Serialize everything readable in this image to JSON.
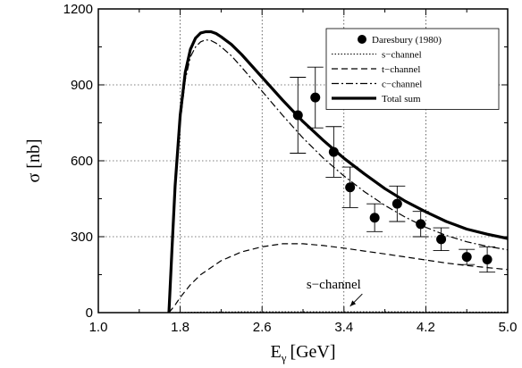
{
  "chart_data": {
    "type": "line",
    "xlabel": "E",
    "xlabel_sub": "γ",
    "xlabel_unit": "[GeV]",
    "ylabel": "σ [nb]",
    "xlim": [
      1.0,
      5.0
    ],
    "ylim": [
      0,
      1200
    ],
    "x_ticks": [
      "1.0",
      "1.8",
      "2.6",
      "3.4",
      "4.2",
      "5.0"
    ],
    "x_tick_values": [
      1.0,
      1.8,
      2.6,
      3.4,
      4.2,
      5.0
    ],
    "y_ticks": [
      "0",
      "300",
      "600",
      "900",
      "1200"
    ],
    "y_tick_values": [
      0,
      300,
      600,
      900,
      1200
    ],
    "grid": true,
    "legend_position": "top-right",
    "legend": [
      "Daresbury (1980)",
      "s−channel",
      "t−channel",
      "c−channel",
      "Total sum"
    ],
    "series": [
      {
        "name": "Total sum",
        "style": "thick-solid",
        "x": [
          1.69,
          1.72,
          1.75,
          1.8,
          1.85,
          1.9,
          1.95,
          2.0,
          2.05,
          2.1,
          2.15,
          2.2,
          2.3,
          2.4,
          2.6,
          2.8,
          3.0,
          3.2,
          3.4,
          3.6,
          3.8,
          4.0,
          4.2,
          4.4,
          4.6,
          4.8,
          5.0
        ],
        "y": [
          0,
          250,
          500,
          780,
          950,
          1040,
          1085,
          1105,
          1110,
          1110,
          1103,
          1090,
          1060,
          1020,
          930,
          840,
          755,
          680,
          610,
          548,
          490,
          440,
          398,
          360,
          330,
          310,
          293
        ]
      },
      {
        "name": "c−channel",
        "style": "dash-dot",
        "x": [
          1.69,
          1.72,
          1.75,
          1.8,
          1.85,
          1.9,
          1.95,
          2.0,
          2.05,
          2.1,
          2.15,
          2.2,
          2.3,
          2.4,
          2.6,
          2.8,
          3.0,
          3.2,
          3.4,
          3.6,
          3.8,
          4.0,
          4.2,
          4.4,
          4.6,
          4.8,
          5.0
        ],
        "y": [
          0,
          240,
          480,
          750,
          920,
          1010,
          1050,
          1070,
          1078,
          1075,
          1065,
          1050,
          1015,
          970,
          875,
          780,
          690,
          610,
          540,
          478,
          424,
          377,
          337,
          305,
          280,
          262,
          248
        ]
      },
      {
        "name": "t−channel",
        "style": "dashed",
        "x": [
          1.69,
          1.75,
          1.8,
          1.9,
          2.0,
          2.2,
          2.4,
          2.6,
          2.8,
          3.0,
          3.2,
          3.4,
          3.6,
          3.8,
          4.0,
          4.2,
          4.4,
          4.6,
          4.8,
          5.0
        ],
        "y": [
          0,
          30,
          60,
          110,
          150,
          205,
          240,
          260,
          272,
          272,
          265,
          255,
          243,
          232,
          220,
          208,
          196,
          186,
          178,
          170
        ]
      },
      {
        "name": "s−channel",
        "style": "dotted",
        "x": [
          1.69,
          2.0,
          2.5,
          3.0,
          3.5,
          4.0,
          4.5,
          5.0
        ],
        "y": [
          0,
          2,
          3,
          3,
          3,
          3,
          2,
          2
        ]
      },
      {
        "name": "Daresbury (1980)",
        "style": "points",
        "x": [
          2.95,
          3.12,
          3.3,
          3.46,
          3.7,
          3.92,
          4.15,
          4.35,
          4.6,
          4.8
        ],
        "y": [
          780,
          850,
          635,
          495,
          375,
          430,
          350,
          290,
          220,
          210
        ],
        "err": [
          150,
          120,
          100,
          80,
          55,
          70,
          50,
          45,
          30,
          50
        ]
      }
    ],
    "annotations": [
      {
        "text": "s−channel",
        "x": 3.3,
        "y": 95,
        "arrow_to": [
          3.46,
          25
        ]
      }
    ]
  }
}
